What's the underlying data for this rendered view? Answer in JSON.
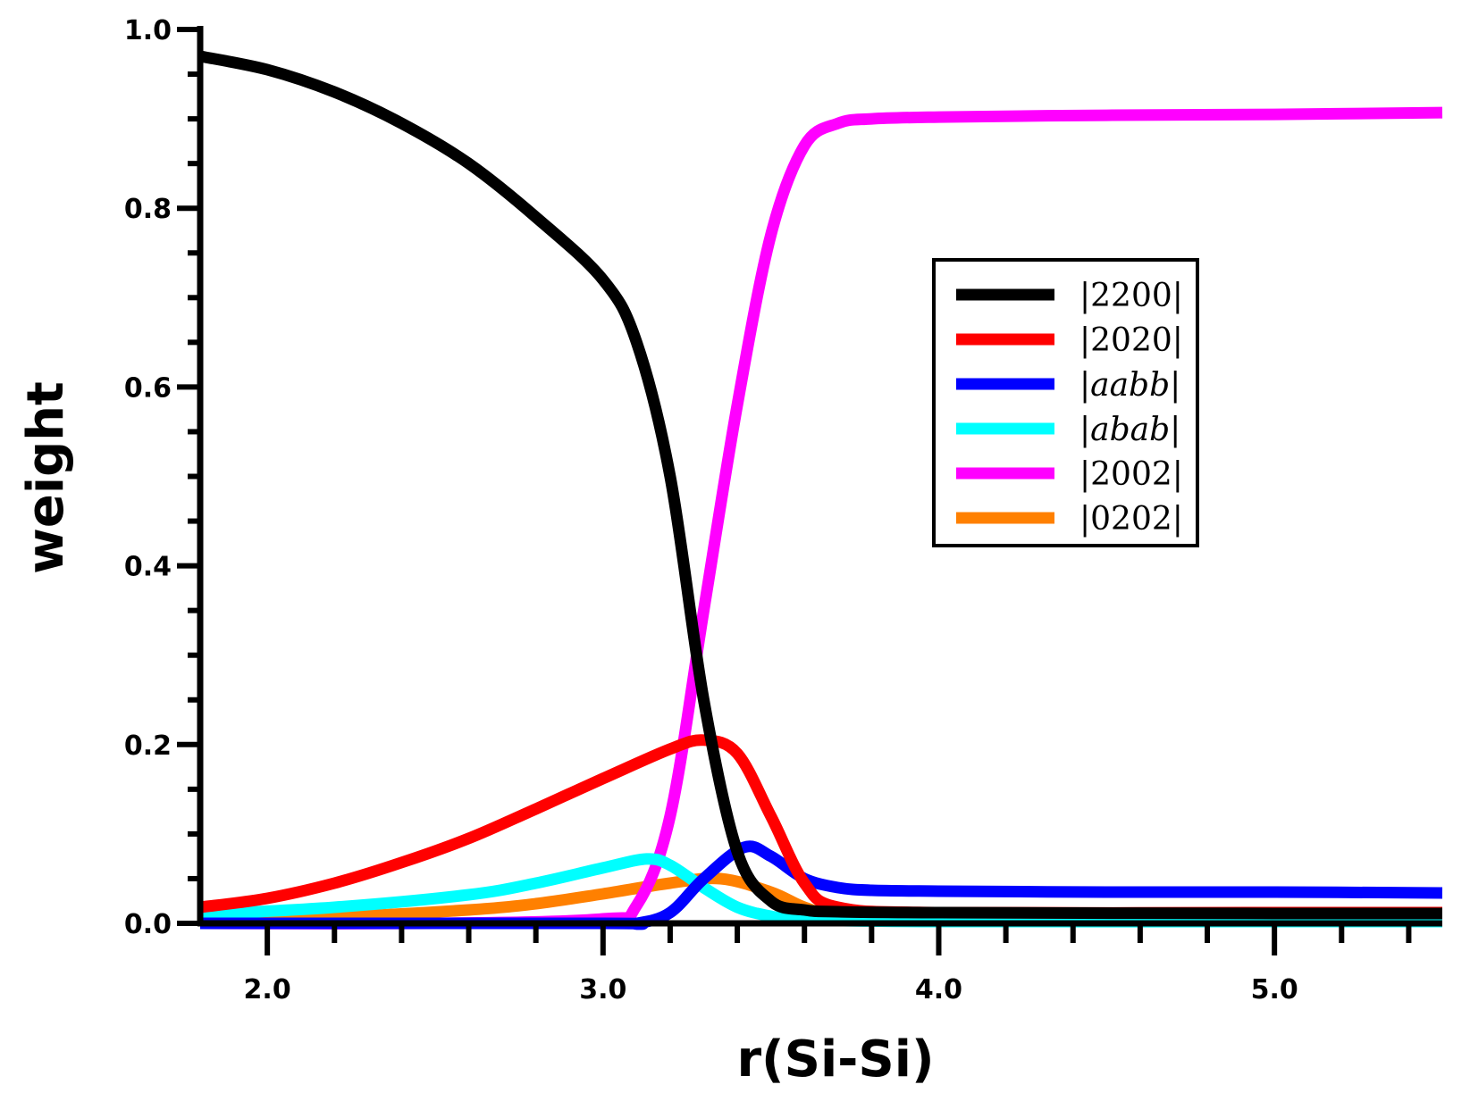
{
  "chart_data": {
    "type": "line",
    "title": "",
    "xlabel": "r(Si-Si)",
    "ylabel": "weight",
    "xlim": [
      1.8,
      5.5
    ],
    "ylim": [
      0.0,
      1.0
    ],
    "x_ticks": [
      2.0,
      3.0,
      4.0,
      5.0
    ],
    "x_tick_labels": [
      "2.0",
      "3.0",
      "4.0",
      "5.0"
    ],
    "x_minor_step": 0.2,
    "y_ticks": [
      0.0,
      0.2,
      0.4,
      0.6,
      0.8,
      1.0
    ],
    "y_tick_labels": [
      "0.0",
      "0.2",
      "0.4",
      "0.6",
      "0.8",
      "1.0"
    ],
    "y_minor_step": 0.05,
    "grid": false,
    "legend_position": "right-middle",
    "series": [
      {
        "name": "|2200|",
        "italic": false,
        "color": "#000000",
        "x": [
          1.8,
          2.0,
          2.2,
          2.4,
          2.6,
          2.8,
          3.0,
          3.1,
          3.2,
          3.3,
          3.4,
          3.5,
          3.6,
          3.7,
          4.0,
          5.0,
          5.5
        ],
        "y": [
          0.97,
          0.955,
          0.93,
          0.895,
          0.85,
          0.79,
          0.72,
          0.65,
          0.5,
          0.25,
          0.08,
          0.025,
          0.015,
          0.013,
          0.012,
          0.011,
          0.011
        ]
      },
      {
        "name": "|2020|",
        "italic": false,
        "color": "#ff0000",
        "x": [
          1.8,
          2.0,
          2.2,
          2.4,
          2.6,
          2.8,
          3.0,
          3.2,
          3.3,
          3.4,
          3.5,
          3.6,
          3.7,
          4.0,
          5.0,
          5.5
        ],
        "y": [
          0.018,
          0.028,
          0.045,
          0.068,
          0.095,
          0.128,
          0.162,
          0.195,
          0.205,
          0.19,
          0.12,
          0.045,
          0.018,
          0.012,
          0.012,
          0.012
        ]
      },
      {
        "name": "|aabb|",
        "italic": true,
        "color": "#0000ff",
        "x": [
          1.8,
          3.0,
          3.1,
          3.2,
          3.3,
          3.42,
          3.5,
          3.6,
          3.7,
          3.8,
          4.0,
          4.5,
          5.0,
          5.5
        ],
        "y": [
          0.0,
          0.0,
          0.0,
          0.012,
          0.05,
          0.085,
          0.075,
          0.05,
          0.04,
          0.037,
          0.036,
          0.035,
          0.035,
          0.034
        ]
      },
      {
        "name": "|abab|",
        "italic": true,
        "color": "#00ffff",
        "x": [
          1.8,
          2.2,
          2.6,
          2.8,
          3.0,
          3.13,
          3.2,
          3.3,
          3.4,
          3.5,
          3.6,
          4.0,
          5.0,
          5.5
        ],
        "y": [
          0.01,
          0.018,
          0.032,
          0.045,
          0.062,
          0.072,
          0.065,
          0.04,
          0.018,
          0.008,
          0.004,
          0.002,
          0.002,
          0.002
        ]
      },
      {
        "name": "|2002|",
        "italic": false,
        "color": "#ff00ff",
        "x": [
          1.8,
          2.5,
          3.0,
          3.1,
          3.2,
          3.3,
          3.4,
          3.5,
          3.6,
          3.7,
          3.8,
          4.0,
          4.5,
          5.0,
          5.5
        ],
        "y": [
          0.0,
          0.0,
          0.005,
          0.02,
          0.12,
          0.35,
          0.58,
          0.77,
          0.87,
          0.895,
          0.9,
          0.902,
          0.904,
          0.905,
          0.907
        ]
      },
      {
        "name": "|0202|",
        "italic": false,
        "color": "#ff8000",
        "x": [
          1.8,
          2.2,
          2.6,
          2.8,
          3.0,
          3.2,
          3.35,
          3.5,
          3.6,
          3.7,
          4.0,
          5.0,
          5.5
        ],
        "y": [
          0.003,
          0.007,
          0.015,
          0.022,
          0.033,
          0.045,
          0.05,
          0.035,
          0.018,
          0.01,
          0.01,
          0.01,
          0.01
        ]
      }
    ]
  }
}
